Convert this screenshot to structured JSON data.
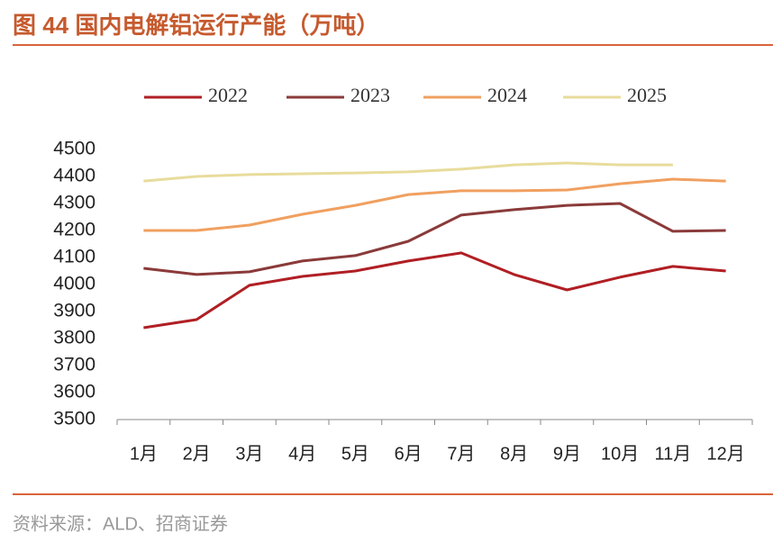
{
  "chart_data": {
    "type": "line",
    "title": "图 44 国内电解铝运行产能（万吨）",
    "source": "资料来源：ALD、招商证券",
    "categories": [
      "1月",
      "2月",
      "3月",
      "4月",
      "5月",
      "6月",
      "7月",
      "8月",
      "9月",
      "10月",
      "11月",
      "12月"
    ],
    "series": [
      {
        "name": "2022",
        "color": "#b01f24",
        "values": [
          3840,
          3870,
          3997,
          4030,
          4050,
          4087,
          4117,
          4037,
          3980,
          4027,
          4067,
          4050
        ]
      },
      {
        "name": "2023",
        "color": "#8b3a3a",
        "values": [
          4060,
          4037,
          4047,
          4087,
          4107,
          4160,
          4257,
          4277,
          4293,
          4300,
          4197,
          4200
        ]
      },
      {
        "name": "2024",
        "color": "#f0a060",
        "values": [
          4200,
          4200,
          4220,
          4260,
          4293,
          4333,
          4347,
          4347,
          4350,
          4373,
          4390,
          4383
        ]
      },
      {
        "name": "2025",
        "color": "#e8dc9c",
        "values": [
          4383,
          4400,
          4407,
          4410,
          4413,
          4417,
          4427,
          4443,
          4450,
          4443,
          4443,
          null
        ]
      }
    ],
    "ylim": [
      3500,
      4500
    ],
    "yticks": [
      3500,
      3600,
      3700,
      3800,
      3900,
      4000,
      4100,
      4200,
      4300,
      4400,
      4500
    ],
    "legend": "top"
  }
}
